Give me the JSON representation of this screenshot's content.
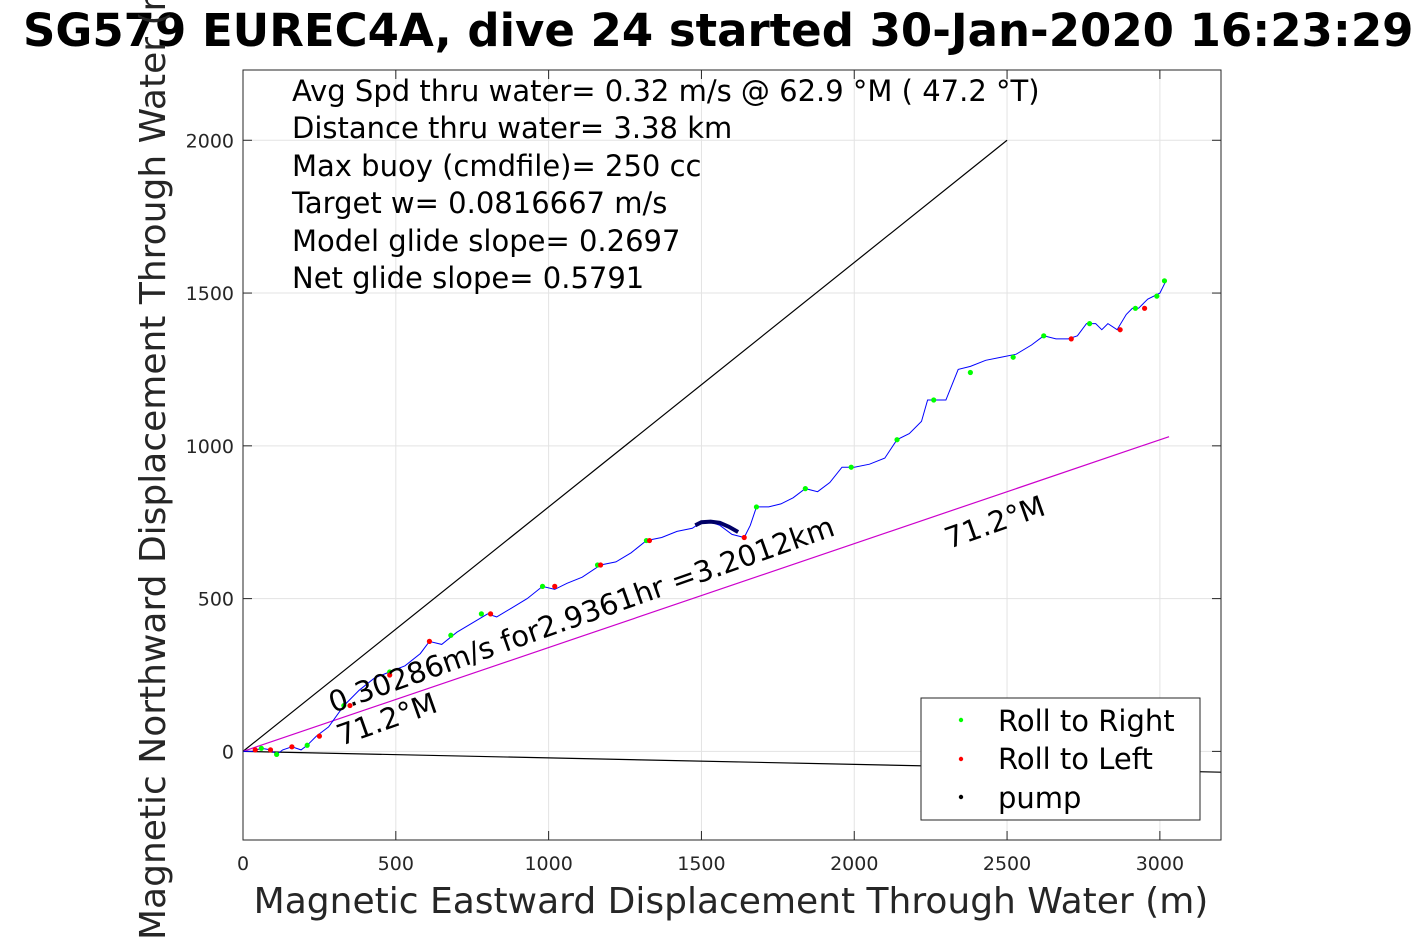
{
  "chart_data": {
    "type": "line",
    "title": "SG579 EUREC4A, dive 24 started 30-Jan-2020 16:23:29",
    "xlabel": "Magnetic Eastward Displacement Through Water (m)",
    "ylabel": "Magnetic Northward Displacement Through Water (m)",
    "xlim": [
      0,
      3200
    ],
    "ylim": [
      -290,
      2230
    ],
    "xticks": [
      0,
      500,
      1000,
      1500,
      2000,
      2500,
      3000
    ],
    "yticks": [
      0,
      500,
      1000,
      1500,
      2000
    ],
    "grid": true,
    "info_lines": [
      "Avg Spd thru water=  0.32 m/s @  62.9 °M ( 47.2 °T)",
      "Distance thru water=  3.38 km",
      "Max buoy (cmdfile)= 250 cc",
      "Target w= 0.0816667 m/s",
      "Model glide slope= 0.2697",
      "Net glide slope= 0.5791"
    ],
    "annotations": {
      "current_label": "0.30286m/s for2.9361hr =3.2012km",
      "heading_label_1": "71.2°M",
      "heading_label_2": "71.2°M"
    },
    "legend": {
      "position": "bottom-right",
      "entries": [
        {
          "label": "Roll to Right",
          "color": "#00ff00"
        },
        {
          "label": "Roll to Left",
          "color": "#ff0000"
        },
        {
          "label": "pump",
          "color": "#000000"
        }
      ]
    },
    "reference_lines": [
      {
        "color": "#000000",
        "x": [
          0,
          2500
        ],
        "y": [
          0,
          2000
        ]
      },
      {
        "color": "#000000",
        "x": [
          0,
          3200
        ],
        "y": [
          0,
          -68
        ]
      },
      {
        "color": "#cc00cc",
        "x": [
          0,
          3030
        ],
        "y": [
          0,
          1030
        ]
      }
    ],
    "track": {
      "color": "#0000ff",
      "x": [
        0,
        30,
        60,
        90,
        110,
        130,
        160,
        190,
        210,
        240,
        280,
        330,
        380,
        430,
        480,
        530,
        580,
        610,
        650,
        700,
        750,
        800,
        830,
        880,
        930,
        980,
        1020,
        1060,
        1110,
        1170,
        1220,
        1270,
        1320,
        1370,
        1420,
        1470,
        1500,
        1530,
        1560,
        1600,
        1640,
        1660,
        1680,
        1720,
        1760,
        1800,
        1840,
        1880,
        1920,
        1960,
        2000,
        2050,
        2100,
        2140,
        2180,
        2220,
        2240,
        2260,
        2300,
        2340,
        2380,
        2430,
        2480,
        2530,
        2580,
        2620,
        2660,
        2700,
        2730,
        2760,
        2790,
        2810,
        2830,
        2860,
        2890,
        2910,
        2930,
        2960,
        3000,
        3020
      ],
      "y": [
        0,
        0,
        10,
        5,
        -10,
        5,
        15,
        5,
        20,
        50,
        80,
        150,
        200,
        240,
        260,
        280,
        320,
        360,
        350,
        390,
        420,
        450,
        440,
        470,
        500,
        540,
        530,
        550,
        570,
        610,
        620,
        650,
        690,
        700,
        720,
        730,
        750,
        750,
        740,
        710,
        700,
        740,
        800,
        800,
        810,
        830,
        860,
        850,
        880,
        930,
        930,
        940,
        960,
        1020,
        1040,
        1080,
        1150,
        1150,
        1150,
        1250,
        1260,
        1280,
        1290,
        1300,
        1330,
        1360,
        1350,
        1350,
        1360,
        1400,
        1400,
        1380,
        1400,
        1380,
        1430,
        1450,
        1450,
        1480,
        1500,
        1540
      ],
      "roll_right": [
        [
          60,
          10
        ],
        [
          110,
          -10
        ],
        [
          210,
          20
        ],
        [
          330,
          150
        ],
        [
          480,
          260
        ],
        [
          680,
          380
        ],
        [
          780,
          450
        ],
        [
          980,
          540
        ],
        [
          1160,
          610
        ],
        [
          1320,
          690
        ],
        [
          1680,
          800
        ],
        [
          1840,
          860
        ],
        [
          1990,
          930
        ],
        [
          2140,
          1020
        ],
        [
          2260,
          1150
        ],
        [
          2380,
          1240
        ],
        [
          2520,
          1290
        ],
        [
          2620,
          1360
        ],
        [
          2770,
          1400
        ],
        [
          2920,
          1450
        ],
        [
          2990,
          1490
        ],
        [
          3015,
          1540
        ]
      ],
      "roll_left": [
        [
          40,
          5
        ],
        [
          90,
          5
        ],
        [
          160,
          15
        ],
        [
          250,
          50
        ],
        [
          350,
          150
        ],
        [
          480,
          250
        ],
        [
          610,
          360
        ],
        [
          810,
          450
        ],
        [
          1020,
          540
        ],
        [
          1170,
          610
        ],
        [
          1330,
          690
        ],
        [
          1640,
          700
        ],
        [
          2710,
          1350
        ],
        [
          2870,
          1380
        ],
        [
          2950,
          1450
        ]
      ],
      "pump": [
        [
          1480,
          740
        ],
        [
          1500,
          750
        ],
        [
          1530,
          752
        ],
        [
          1560,
          748
        ],
        [
          1590,
          735
        ],
        [
          1620,
          718
        ]
      ]
    }
  }
}
